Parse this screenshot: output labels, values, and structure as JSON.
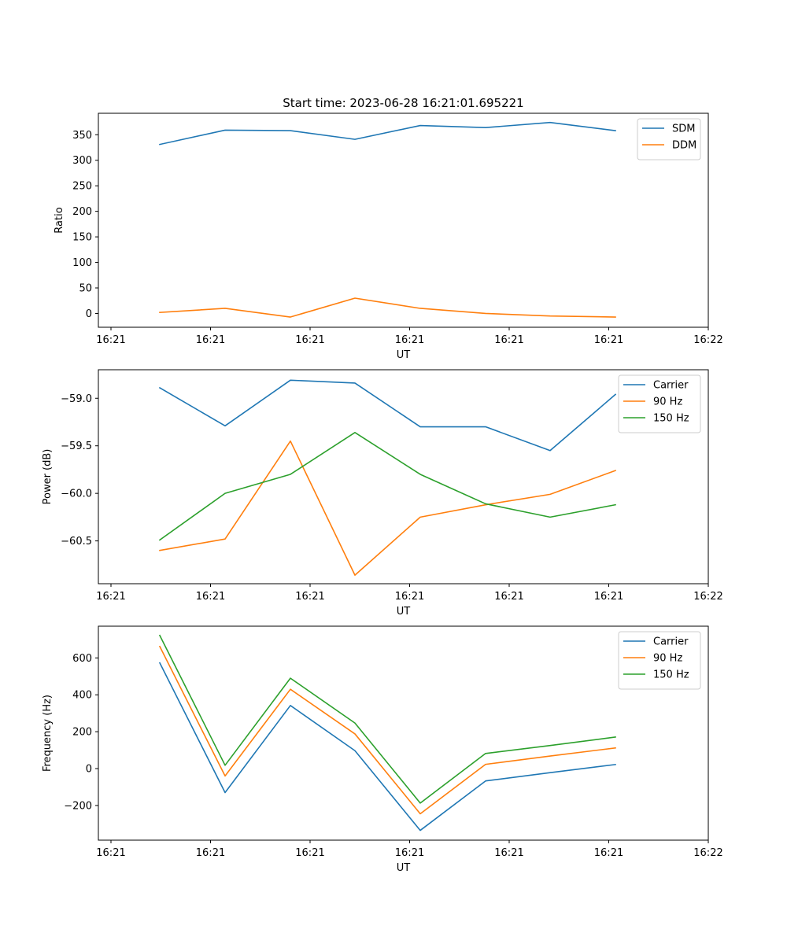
{
  "chart_data": [
    {
      "type": "line",
      "title": "Start time: 2023-06-28 16:21:01.695221",
      "xlabel": "UT",
      "ylabel": "Ratio",
      "x_tick_labels": [
        "16:21",
        "16:21",
        "16:21",
        "16:21",
        "16:21",
        "16:21",
        "16:21"
      ],
      "ylim": [
        -27,
        392
      ],
      "y_ticks": [
        0,
        50,
        100,
        150,
        200,
        250,
        300,
        350
      ],
      "legend": "upper-right",
      "grid": false,
      "series": [
        {
          "name": "SDM",
          "color": "#1f77b4",
          "values": [
            331,
            359,
            358,
            341,
            368,
            364,
            374,
            358
          ]
        },
        {
          "name": "DDM",
          "color": "#ff7f0e",
          "values": [
            2,
            10,
            -7,
            30,
            10,
            0,
            -5,
            -7
          ]
        }
      ]
    },
    {
      "type": "line",
      "title": "",
      "xlabel": "UT",
      "ylabel": "Power (dB)",
      "x_tick_labels": [
        "16:21",
        "16:21",
        "16:21",
        "16:21",
        "16:21",
        "16:21",
        "16:21"
      ],
      "ylim": [
        -60.95,
        -58.7
      ],
      "y_ticks": [
        -60.5,
        -60.0,
        -59.5,
        -59.0
      ],
      "y_tick_labels": [
        "−60.5",
        "−60.0",
        "−59.5",
        "−59.0"
      ],
      "legend": "upper-right",
      "grid": false,
      "series": [
        {
          "name": "Carrier",
          "color": "#1f77b4",
          "values": [
            -58.89,
            -59.29,
            -58.81,
            -58.84,
            -59.3,
            -59.3,
            -59.55,
            -58.96
          ]
        },
        {
          "name": "90 Hz",
          "color": "#ff7f0e",
          "values": [
            -60.6,
            -60.48,
            -59.45,
            -60.86,
            -60.25,
            -60.12,
            -60.01,
            -59.76
          ]
        },
        {
          "name": "150 Hz",
          "color": "#2ca02c",
          "values": [
            -60.49,
            -60.0,
            -59.8,
            -59.36,
            -59.8,
            -60.11,
            -60.25,
            -60.12
          ]
        }
      ]
    },
    {
      "type": "line",
      "title": "",
      "xlabel": "UT",
      "ylabel": "Frequency (Hz)",
      "x_tick_labels": [
        "16:21",
        "16:21",
        "16:21",
        "16:21",
        "16:21",
        "16:21",
        "16:21"
      ],
      "ylim": [
        -388,
        772
      ],
      "y_ticks": [
        -200,
        0,
        200,
        400,
        600
      ],
      "y_tick_labels": [
        "−200",
        "0",
        "200",
        "400",
        "600"
      ],
      "legend": "upper-right",
      "grid": false,
      "series": [
        {
          "name": "Carrier",
          "color": "#1f77b4",
          "values": [
            573,
            -130,
            342,
            97,
            -335,
            -67,
            -22,
            22
          ]
        },
        {
          "name": "90 Hz",
          "color": "#ff7f0e",
          "values": [
            662,
            -40,
            430,
            188,
            -245,
            23,
            68,
            112
          ]
        },
        {
          "name": "150 Hz",
          "color": "#2ca02c",
          "values": [
            722,
            18,
            490,
            247,
            -187,
            82,
            125,
            171
          ]
        }
      ]
    }
  ],
  "x_axis": {
    "tick_labels_all": [
      "16:21",
      "16:21",
      "16:21",
      "16:21",
      "16:21",
      "16:21",
      "16:22"
    ],
    "points_label_count": 8
  }
}
